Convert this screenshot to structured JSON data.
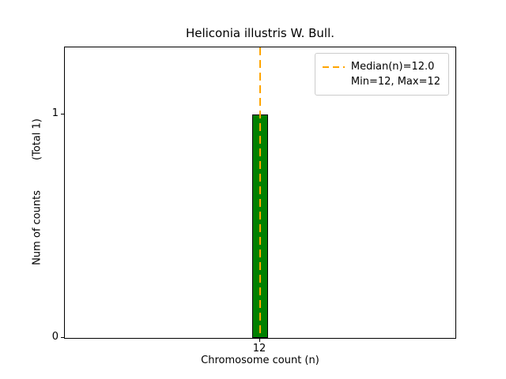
{
  "chart_data": {
    "type": "bar",
    "title": "Heliconia illustris W. Bull.",
    "xlabel": "Chromosome count (n)",
    "ylabel": "Num of counts",
    "ylabel_secondary": "(Total 1)",
    "categories": [
      12
    ],
    "values": [
      1
    ],
    "xticks": [
      "12"
    ],
    "yticks": [
      0,
      1
    ],
    "xlim": [
      11.5,
      12.5
    ],
    "ylim": [
      0,
      1.3
    ],
    "bar_width_data": 0.04,
    "bar_color": "#008000",
    "bar_edge_color": "#000000",
    "grid": false,
    "median_line": {
      "x": 12.0,
      "color": "#FFA500",
      "style": "dashed"
    },
    "legend": {
      "position": "upper right",
      "entries": [
        {
          "symbol": "dashed-line",
          "color": "#FFA500",
          "label": "Median(n)=12.0"
        },
        {
          "symbol": "none",
          "color": "",
          "label": "Min=12, Max=12"
        }
      ]
    }
  }
}
